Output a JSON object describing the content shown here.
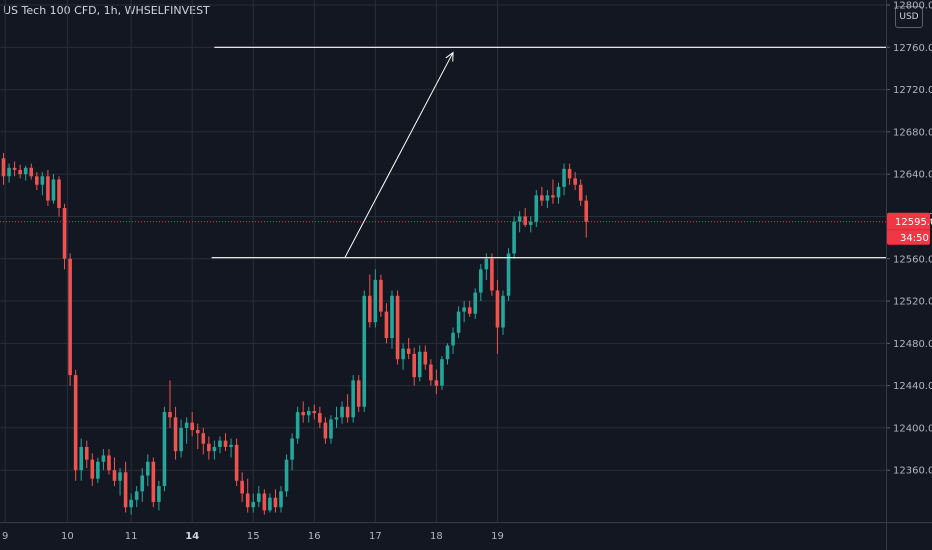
{
  "header": {
    "symbol_title": "US Tech 100 CFD, 1h, WHSELFINVEST"
  },
  "currency_button": {
    "label": "USD"
  },
  "price_tag": {
    "price": "12595.0",
    "countdown": "34:50",
    "color": "#f23645"
  },
  "colors": {
    "up": "#26a69a",
    "down": "#ef5350",
    "background": "#131722",
    "grid": "#2a2e39"
  },
  "chart_data": {
    "type": "candlestick",
    "title": "US Tech 100 CFD, 1h, WHSELFINVEST",
    "ylim": [
      12320,
      12800
    ],
    "y_ticks": [
      "12800.0",
      "12760.0",
      "12720.0",
      "12680.0",
      "12640.0",
      "12600.0",
      "12560.0",
      "12520.0",
      "12480.0",
      "12440.0",
      "12400.0",
      "12360.0"
    ],
    "x_ticks": [
      {
        "label": "9",
        "pos": 0.3,
        "bold": false
      },
      {
        "label": "10",
        "pos": 11.5,
        "bold": false
      },
      {
        "label": "11",
        "pos": 23.0,
        "bold": false
      },
      {
        "label": "14",
        "pos": 34.0,
        "bold": true
      },
      {
        "label": "15",
        "pos": 45.0,
        "bold": false
      },
      {
        "label": "16",
        "pos": 56.0,
        "bold": false
      },
      {
        "label": "17",
        "pos": 67.0,
        "bold": false
      },
      {
        "label": "18",
        "pos": 78.0,
        "bold": false
      },
      {
        "label": "19",
        "pos": 89.0,
        "bold": false
      }
    ],
    "grid": true,
    "last_price": 12595.0,
    "horizontal_levels": [
      {
        "price": 12760,
        "from": 38.0
      },
      {
        "price": 12561,
        "from": 37.5
      }
    ],
    "trend_arrow": {
      "from": [
        61.5,
        12561
      ],
      "to": [
        81.0,
        12755
      ]
    },
    "candles": [
      [
        12655,
        12660,
        12630,
        12638
      ],
      [
        12638,
        12650,
        12632,
        12646
      ],
      [
        12646,
        12652,
        12638,
        12644
      ],
      [
        12644,
        12649,
        12636,
        12640
      ],
      [
        12640,
        12648,
        12634,
        12646
      ],
      [
        12646,
        12650,
        12635,
        12638
      ],
      [
        12638,
        12642,
        12625,
        12630
      ],
      [
        12630,
        12642,
        12620,
        12638
      ],
      [
        12638,
        12644,
        12610,
        12615
      ],
      [
        12615,
        12640,
        12612,
        12635
      ],
      [
        12635,
        12638,
        12600,
        12608
      ],
      [
        12608,
        12612,
        12550,
        12560
      ],
      [
        12560,
        12565,
        12440,
        12450
      ],
      [
        12450,
        12455,
        12350,
        12360
      ],
      [
        12360,
        12390,
        12350,
        12382
      ],
      [
        12382,
        12388,
        12362,
        12370
      ],
      [
        12370,
        12376,
        12345,
        12352
      ],
      [
        12352,
        12372,
        12348,
        12368
      ],
      [
        12368,
        12380,
        12360,
        12374
      ],
      [
        12374,
        12380,
        12356,
        12360
      ],
      [
        12360,
        12372,
        12345,
        12350
      ],
      [
        12350,
        12362,
        12336,
        12358
      ],
      [
        12358,
        12368,
        12320,
        12325
      ],
      [
        12325,
        12338,
        12318,
        12332
      ],
      [
        12332,
        12345,
        12325,
        12340
      ],
      [
        12340,
        12362,
        12330,
        12355
      ],
      [
        12355,
        12375,
        12345,
        12368
      ],
      [
        12368,
        12372,
        12325,
        12330
      ],
      [
        12330,
        12350,
        12322,
        12345
      ],
      [
        12345,
        12420,
        12340,
        12415
      ],
      [
        12415,
        12445,
        12400,
        12410
      ],
      [
        12410,
        12420,
        12370,
        12378
      ],
      [
        12378,
        12408,
        12372,
        12400
      ],
      [
        12400,
        12410,
        12385,
        12405
      ],
      [
        12405,
        12415,
        12392,
        12398
      ],
      [
        12398,
        12404,
        12380,
        12395
      ],
      [
        12395,
        12400,
        12375,
        12385
      ],
      [
        12385,
        12392,
        12370,
        12378
      ],
      [
        12378,
        12388,
        12370,
        12382
      ],
      [
        12382,
        12392,
        12376,
        12388
      ],
      [
        12388,
        12395,
        12378,
        12382
      ],
      [
        12382,
        12390,
        12372,
        12384
      ],
      [
        12384,
        12390,
        12345,
        12350
      ],
      [
        12350,
        12358,
        12330,
        12338
      ],
      [
        12338,
        12352,
        12320,
        12325
      ],
      [
        12325,
        12338,
        12320,
        12330
      ],
      [
        12330,
        12345,
        12325,
        12338
      ],
      [
        12338,
        12342,
        12318,
        12322
      ],
      [
        12322,
        12338,
        12320,
        12334
      ],
      [
        12334,
        12342,
        12320,
        12325
      ],
      [
        12325,
        12345,
        12320,
        12340
      ],
      [
        12340,
        12375,
        12335,
        12370
      ],
      [
        12370,
        12395,
        12360,
        12390
      ],
      [
        12390,
        12420,
        12385,
        12415
      ],
      [
        12415,
        12425,
        12405,
        12412
      ],
      [
        12412,
        12420,
        12405,
        12416
      ],
      [
        12416,
        12422,
        12408,
        12414
      ],
      [
        12414,
        12420,
        12400,
        12405
      ],
      [
        12405,
        12410,
        12385,
        12390
      ],
      [
        12390,
        12412,
        12385,
        12408
      ],
      [
        12408,
        12420,
        12400,
        12410
      ],
      [
        12410,
        12425,
        12404,
        12420
      ],
      [
        12420,
        12432,
        12405,
        12410
      ],
      [
        12410,
        12450,
        12405,
        12445
      ],
      [
        12445,
        12450,
        12415,
        12420
      ],
      [
        12420,
        12530,
        12415,
        12525
      ],
      [
        12525,
        12545,
        12495,
        12500
      ],
      [
        12500,
        12550,
        12495,
        12540
      ],
      [
        12540,
        12545,
        12505,
        12510
      ],
      [
        12510,
        12518,
        12480,
        12485
      ],
      [
        12485,
        12530,
        12475,
        12525
      ],
      [
        12525,
        12530,
        12460,
        12465
      ],
      [
        12465,
        12480,
        12455,
        12475
      ],
      [
        12475,
        12485,
        12465,
        12470
      ],
      [
        12470,
        12476,
        12440,
        12448
      ],
      [
        12448,
        12478,
        12444,
        12472
      ],
      [
        12472,
        12478,
        12455,
        12460
      ],
      [
        12460,
        12465,
        12440,
        12445
      ],
      [
        12445,
        12455,
        12432,
        12440
      ],
      [
        12440,
        12468,
        12436,
        12465
      ],
      [
        12465,
        12480,
        12460,
        12478
      ],
      [
        12478,
        12495,
        12470,
        12490
      ],
      [
        12490,
        12515,
        12485,
        12510
      ],
      [
        12510,
        12520,
        12500,
        12514
      ],
      [
        12514,
        12520,
        12505,
        12508
      ],
      [
        12508,
        12532,
        12503,
        12528
      ],
      [
        12528,
        12555,
        12520,
        12550
      ],
      [
        12550,
        12565,
        12540,
        12560
      ],
      [
        12560,
        12565,
        12525,
        12530
      ],
      [
        12530,
        12540,
        12470,
        12495
      ],
      [
        12495,
        12530,
        12488,
        12525
      ],
      [
        12525,
        12570,
        12520,
        12565
      ],
      [
        12565,
        12600,
        12560,
        12595
      ],
      [
        12595,
        12605,
        12585,
        12600
      ],
      [
        12600,
        12608,
        12590,
        12592
      ],
      [
        12592,
        12600,
        12585,
        12595
      ],
      [
        12595,
        12625,
        12590,
        12620
      ],
      [
        12620,
        12628,
        12610,
        12615
      ],
      [
        12615,
        12625,
        12608,
        12620
      ],
      [
        12620,
        12635,
        12612,
        12618
      ],
      [
        12618,
        12632,
        12612,
        12628
      ],
      [
        12628,
        12650,
        12620,
        12645
      ],
      [
        12645,
        12650,
        12630,
        12636
      ],
      [
        12636,
        12642,
        12625,
        12630
      ],
      [
        12630,
        12635,
        12610,
        12615
      ],
      [
        12615,
        12620,
        12580,
        12595
      ]
    ]
  }
}
